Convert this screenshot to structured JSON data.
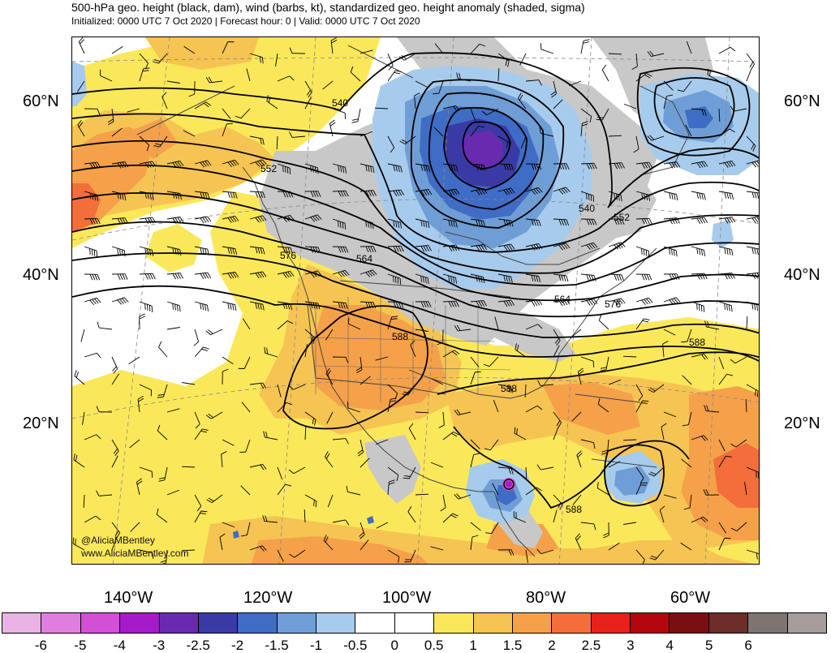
{
  "header": {
    "title": "500-hPa geo. height (black, dam), wind (barbs, kt), standardized geo. height anomaly (shaded, sigma)",
    "subtitle": "Initialized: 0000 UTC 7 Oct 2020 | Forecast hour: 0 | Valid: 0000 UTC 7 Oct 2020"
  },
  "lat_labels": [
    "60°N",
    "40°N",
    "20°N"
  ],
  "lon_labels": [
    "140°W",
    "120°W",
    "100°W",
    "80°W",
    "60°W"
  ],
  "contour_labels": [
    "540",
    "552",
    "564",
    "576",
    "588",
    "540",
    "552",
    "564",
    "576",
    "588",
    "588",
    "588"
  ],
  "credits": {
    "twitter": "@AliciaMBentley",
    "website": "www.AliciaMBentley.com"
  },
  "colorbar": {
    "colors": [
      "#e9b3e6",
      "#e07ee0",
      "#d24fd6",
      "#a51ac9",
      "#6a2ab0",
      "#3a3aa6",
      "#3f6cc4",
      "#6f9ed6",
      "#a7cbec",
      "#ffffff",
      "#ffffff",
      "#fbe85a",
      "#f6c452",
      "#f5a14a",
      "#f36e3a",
      "#e8221b",
      "#b1070d",
      "#7a0f12",
      "#6b2e2b",
      "#7c7572",
      "#a59d9b"
    ],
    "labels": [
      "-6",
      "-5",
      "-4",
      "-3",
      "-2.5",
      "-2",
      "-1.5",
      "-1",
      "-0.5",
      "0",
      "0.5",
      "1",
      "1.5",
      "2",
      "2.5",
      "3",
      "4",
      "5",
      "6"
    ]
  },
  "colors": {
    "land_gray": "#c8c8c8",
    "pos1": "#fbe85a",
    "pos2": "#f6c452",
    "pos3": "#f5a14a",
    "pos4": "#f36e3a",
    "neg1": "#a7cbec",
    "neg2": "#6f9ed6",
    "neg3": "#3f6cc4",
    "neg4": "#3a3aa6",
    "neg5": "#6a2ab0",
    "tc_magenta": "#d24fd6"
  }
}
